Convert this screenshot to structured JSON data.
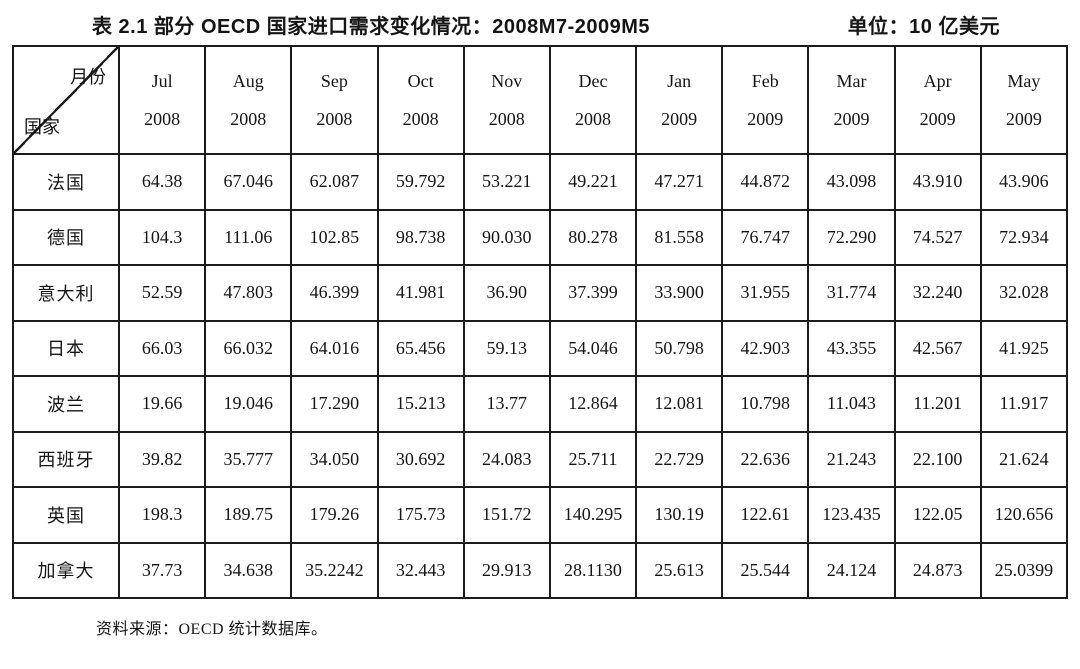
{
  "title": {
    "main": "表 2.1  部分 OECD 国家进口需求变化情况：2008M7-2009M5",
    "unit": "单位：10 亿美元"
  },
  "table": {
    "corner": {
      "top_label": "月份",
      "bottom_label": "国家"
    },
    "months": [
      {
        "month": "Jul",
        "year": "2008"
      },
      {
        "month": "Aug",
        "year": "2008"
      },
      {
        "month": "Sep",
        "year": "2008"
      },
      {
        "month": "Oct",
        "year": "2008"
      },
      {
        "month": "Nov",
        "year": "2008"
      },
      {
        "month": "Dec",
        "year": "2008"
      },
      {
        "month": "Jan",
        "year": "2009"
      },
      {
        "month": "Feb",
        "year": "2009"
      },
      {
        "month": "Mar",
        "year": "2009"
      },
      {
        "month": "Apr",
        "year": "2009"
      },
      {
        "month": "May",
        "year": "2009"
      }
    ],
    "rows": [
      {
        "country": "法国",
        "values": [
          "64.38",
          "67.046",
          "62.087",
          "59.792",
          "53.221",
          "49.221",
          "47.271",
          "44.872",
          "43.098",
          "43.910",
          "43.906"
        ]
      },
      {
        "country": "德国",
        "values": [
          "104.3",
          "111.06",
          "102.85",
          "98.738",
          "90.030",
          "80.278",
          "81.558",
          "76.747",
          "72.290",
          "74.527",
          "72.934"
        ]
      },
      {
        "country": "意大利",
        "values": [
          "52.59",
          "47.803",
          "46.399",
          "41.981",
          "36.90",
          "37.399",
          "33.900",
          "31.955",
          "31.774",
          "32.240",
          "32.028"
        ]
      },
      {
        "country": "日本",
        "values": [
          "66.03",
          "66.032",
          "64.016",
          "65.456",
          "59.13",
          "54.046",
          "50.798",
          "42.903",
          "43.355",
          "42.567",
          "41.925"
        ]
      },
      {
        "country": "波兰",
        "values": [
          "19.66",
          "19.046",
          "17.290",
          "15.213",
          "13.77",
          "12.864",
          "12.081",
          "10.798",
          "11.043",
          "11.201",
          "11.917"
        ]
      },
      {
        "country": "西班牙",
        "values": [
          "39.82",
          "35.777",
          "34.050",
          "30.692",
          "24.083",
          "25.711",
          "22.729",
          "22.636",
          "21.243",
          "22.100",
          "21.624"
        ]
      },
      {
        "country": "英国",
        "values": [
          "198.3",
          "189.75",
          "179.26",
          "175.73",
          "151.72",
          "140.295",
          "130.19",
          "122.61",
          "123.435",
          "122.05",
          "120.656"
        ]
      },
      {
        "country": "加拿大",
        "values": [
          "37.73",
          "34.638",
          "35.2242",
          "32.443",
          "29.913",
          "28.1130",
          "25.613",
          "25.544",
          "24.124",
          "24.873",
          "25.0399"
        ]
      }
    ],
    "source": "资料来源：OECD 统计数据库。"
  }
}
